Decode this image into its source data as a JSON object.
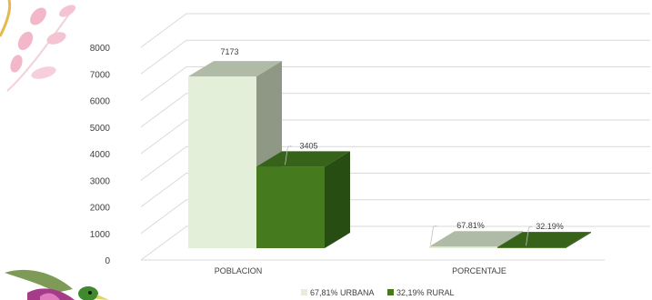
{
  "chart_data": {
    "type": "bar",
    "style": "3d-clustered-column",
    "categories": [
      "POBLACION",
      "PORCENTAJE"
    ],
    "series": [
      {
        "name": "67,81% URBANA",
        "values": [
          7173,
          67.81
        ],
        "labels": [
          "7173",
          "67.81%"
        ],
        "color": "#e3efd9",
        "side_color": "#8e9885",
        "top_color": "#b0bba7"
      },
      {
        "name": "32,19% RURAL",
        "values": [
          3405,
          32.19
        ],
        "labels": [
          "3405",
          "32.19%"
        ],
        "color": "#457a1f",
        "side_color": "#274d12",
        "top_color": "#36621a"
      }
    ],
    "yticks": [
      "0",
      "1000",
      "2000",
      "3000",
      "4000",
      "5000",
      "6000",
      "7000",
      "8000"
    ],
    "ylim": [
      0,
      8000
    ],
    "grid": true,
    "legend_position": "bottom"
  },
  "decoration": {
    "top_left": "pink-leaf-branch",
    "bottom_left": "hummingbird"
  }
}
